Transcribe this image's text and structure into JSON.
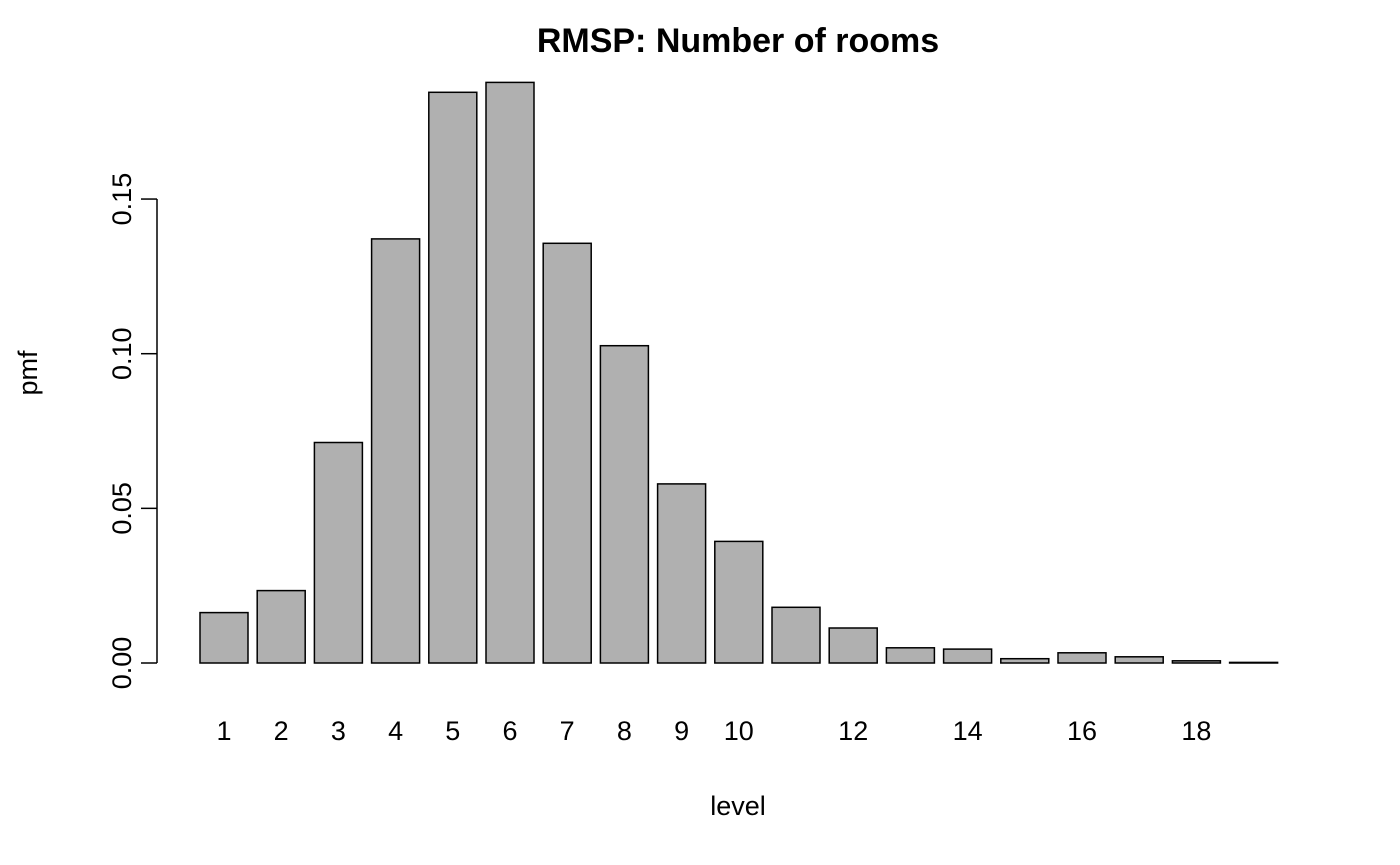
{
  "chart_data": {
    "type": "bar",
    "title": "RMSP: Number of rooms",
    "xlabel": "level",
    "ylabel": "pmf",
    "categories": [
      "1",
      "2",
      "3",
      "4",
      "5",
      "6",
      "7",
      "8",
      "9",
      "10",
      "11",
      "12",
      "13",
      "14",
      "15",
      "16",
      "17",
      "18",
      "19"
    ],
    "values": [
      0.0163,
      0.0234,
      0.0713,
      0.1371,
      0.1845,
      0.1877,
      0.1357,
      0.1026,
      0.0579,
      0.0393,
      0.018,
      0.0113,
      0.0049,
      0.0045,
      0.0014,
      0.0033,
      0.002,
      0.0007,
      0.0002
    ],
    "x_tick_labels": [
      {
        "category": "1",
        "label": "1"
      },
      {
        "category": "2",
        "label": "2"
      },
      {
        "category": "3",
        "label": "3"
      },
      {
        "category": "4",
        "label": "4"
      },
      {
        "category": "5",
        "label": "5"
      },
      {
        "category": "6",
        "label": "6"
      },
      {
        "category": "7",
        "label": "7"
      },
      {
        "category": "8",
        "label": "8"
      },
      {
        "category": "9",
        "label": "9"
      },
      {
        "category": "10",
        "label": "10"
      },
      {
        "category": "12",
        "label": "12"
      },
      {
        "category": "14",
        "label": "14"
      },
      {
        "category": "16",
        "label": "16"
      },
      {
        "category": "18",
        "label": "18"
      }
    ],
    "y_ticks": [
      0.0,
      0.05,
      0.1,
      0.15
    ],
    "y_tick_labels": [
      "0.00",
      "0.05",
      "0.10",
      "0.15"
    ],
    "ylim": [
      0,
      0.19
    ],
    "grid": false,
    "legend": "none",
    "colors": {
      "bar_fill": "#b0b0b0",
      "bar_stroke": "#000000"
    }
  }
}
